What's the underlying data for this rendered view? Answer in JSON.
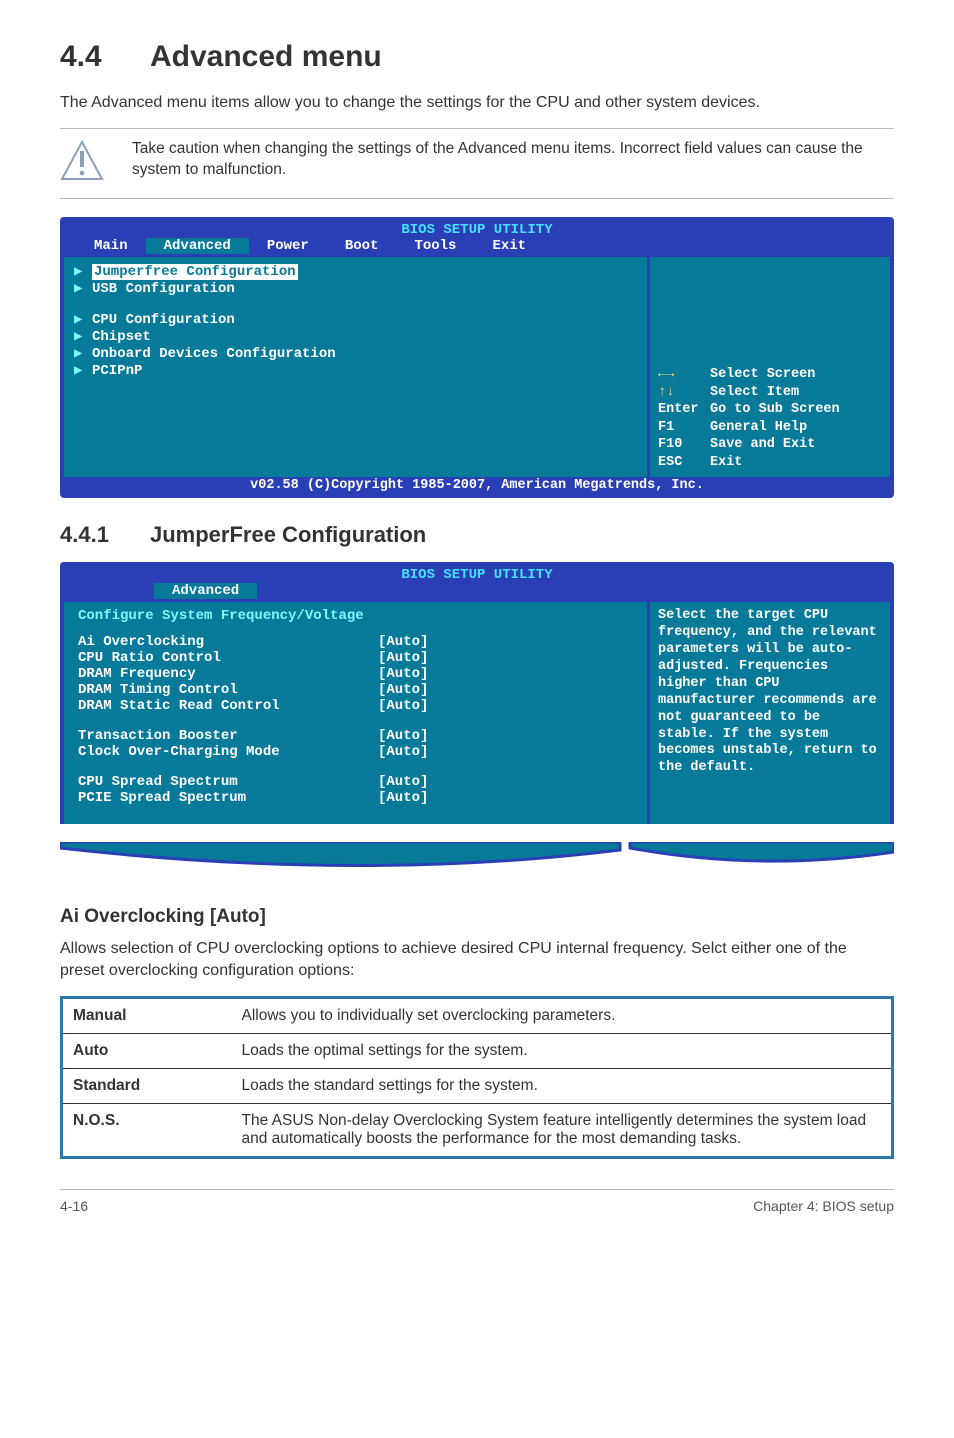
{
  "section": {
    "number": "4.4",
    "title": "Advanced menu"
  },
  "intro": "The Advanced menu items allow you to change the settings for the CPU and other system devices.",
  "note": "Take caution when changing the settings of the Advanced menu items. Incorrect field values can cause the system to malfunction.",
  "bios1": {
    "title": "BIOS SETUP UTILITY",
    "menus": [
      "Main",
      "Advanced",
      "Power",
      "Boot",
      "Tools",
      "Exit"
    ],
    "selected_menu": "Advanced",
    "items_group1": [
      "Jumperfree Configuration",
      "USB Configuration"
    ],
    "items_group2": [
      "CPU Configuration",
      "Chipset",
      "Onboard Devices Configuration",
      "PCIPnP"
    ],
    "selected_item": "Jumperfree Configuration",
    "keys": [
      {
        "glyph": "←→",
        "label": "Select Screen",
        "color": "#ffe066"
      },
      {
        "glyph": "↑↓",
        "label": "Select Item",
        "color": "#ffe066"
      },
      {
        "glyph": "Enter",
        "label": "Go to Sub Screen",
        "color": "#ffffff"
      },
      {
        "glyph": "F1",
        "label": "General Help",
        "color": "#ffffff"
      },
      {
        "glyph": "F10",
        "label": "Save and Exit",
        "color": "#ffffff"
      },
      {
        "glyph": "ESC",
        "label": "Exit",
        "color": "#ffffff"
      }
    ],
    "footer": "v02.58 (C)Copyright 1985-2007, American Megatrends, Inc."
  },
  "subsection": {
    "number": "4.4.1",
    "title": "JumperFree Configuration"
  },
  "bios2": {
    "title": "BIOS SETUP UTILITY",
    "menu_label": "Advanced",
    "heading": "Configure System Frequency/Voltage",
    "rows": [
      {
        "label": "Ai Overclocking",
        "value": "[Auto]"
      },
      {
        "label": "CPU Ratio Control",
        "value": "[Auto]"
      },
      {
        "label": "DRAM Frequency",
        "value": "[Auto]"
      },
      {
        "label": "DRAM Timing Control",
        "value": "[Auto]"
      },
      {
        "label": "DRAM Static Read Control",
        "value": "[Auto]"
      },
      {
        "label": "",
        "value": ""
      },
      {
        "label": "Transaction Booster",
        "value": "[Auto]"
      },
      {
        "label": "Clock Over-Charging Mode",
        "value": "[Auto]"
      },
      {
        "label": "",
        "value": ""
      },
      {
        "label": "CPU  Spread Spectrum",
        "value": "[Auto]"
      },
      {
        "label": "PCIE Spread Spectrum",
        "value": "[Auto]"
      }
    ],
    "help": "Select the target CPU frequency, and the relevant parameters will be auto-adjusted. Frequencies higher than CPU manufacturer recommends are not guaranteed to be stable. If the system becomes unstable, return to the default."
  },
  "option": {
    "title": "Ai Overclocking [Auto]",
    "text": "Allows selection of CPU overclocking options to achieve desired CPU internal frequency. Selct either one of the preset overclocking configuration options:"
  },
  "table": [
    {
      "k": "Manual",
      "v": "Allows you to individually set overclocking parameters."
    },
    {
      "k": "Auto",
      "v": "Loads the optimal settings for the system."
    },
    {
      "k": "Standard",
      "v": "Loads the standard settings for the system."
    },
    {
      "k": "N.O.S.",
      "v": "The ASUS Non-delay Overclocking System feature intelligently determines the system load and automatically boosts the performance for the most demanding tasks."
    }
  ],
  "footer": {
    "left": "4-16",
    "right": "Chapter 4: BIOS setup"
  }
}
